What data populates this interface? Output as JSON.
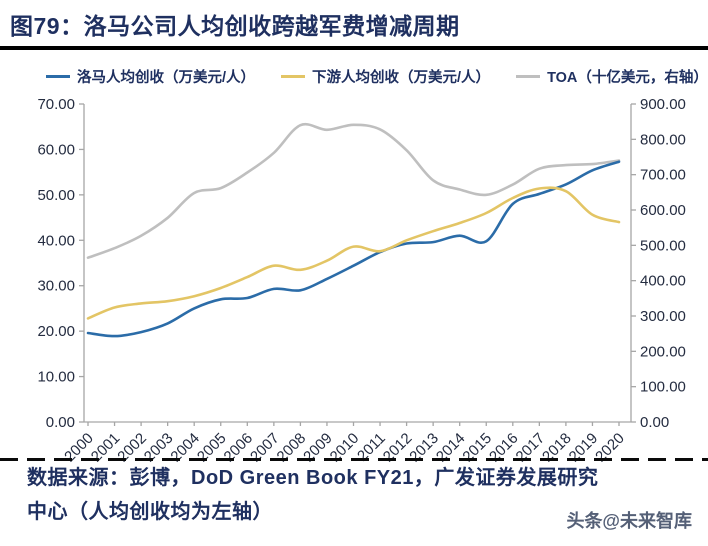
{
  "header": {
    "title": "图79：洛马公司人均创收跨越军费增减周期"
  },
  "legend": {
    "items": [
      {
        "label": "洛马人均创收（万美元/人）",
        "color": "#2B6CA8"
      },
      {
        "label": "下游人均创收（万美元/人）",
        "color": "#E3C565"
      },
      {
        "label": "TOA（十亿美元，右轴）",
        "color": "#BFBFBF"
      }
    ]
  },
  "chart_data": {
    "type": "line",
    "title": "洛马公司人均创收跨越军费增减周期",
    "categories": [
      "2000",
      "2001",
      "2002",
      "2003",
      "2004",
      "2005",
      "2006",
      "2007",
      "2008",
      "2009",
      "2010",
      "2011",
      "2012",
      "2013",
      "2014",
      "2015",
      "2016",
      "2017",
      "2018",
      "2019",
      "2020"
    ],
    "series": [
      {
        "name": "洛马人均创收（万美元/人）",
        "axis": "left",
        "color": "#2B6CA8",
        "values": [
          19.6,
          18.9,
          19.8,
          21.7,
          25.0,
          27.0,
          27.3,
          29.3,
          29.0,
          31.5,
          34.4,
          37.4,
          39.3,
          39.6,
          41.0,
          39.8,
          48.0,
          50.2,
          52.3,
          55.4,
          57.3
        ]
      },
      {
        "name": "下游人均创收（万美元/人）",
        "axis": "left",
        "color": "#E3C565",
        "values": [
          22.8,
          25.2,
          26.1,
          26.6,
          27.7,
          29.5,
          31.9,
          34.4,
          33.5,
          35.5,
          38.6,
          37.6,
          40.0,
          42.0,
          43.8,
          46.0,
          49.3,
          51.4,
          50.8,
          45.6,
          44.0
        ]
      },
      {
        "name": "TOA（十亿美元，右轴）",
        "axis": "right",
        "color": "#BFBFBF",
        "values": [
          465,
          492,
          527,
          578,
          648,
          662,
          706,
          762,
          840,
          827,
          841,
          828,
          769,
          684,
          658,
          643,
          672,
          717,
          727,
          730,
          740
        ]
      }
    ],
    "left_axis": {
      "min": 0,
      "max": 70,
      "tick_labels": [
        "0.00",
        "10.00",
        "20.00",
        "30.00",
        "40.00",
        "50.00",
        "60.00",
        "70.00"
      ]
    },
    "right_axis": {
      "min": 0,
      "max": 900,
      "tick_labels": [
        "0.00",
        "100.00",
        "200.00",
        "300.00",
        "400.00",
        "500.00",
        "600.00",
        "700.00",
        "800.00",
        "900.00"
      ]
    },
    "grid": false,
    "legend_position": "top"
  },
  "footer": {
    "source_line1": "数据来源：彭博，DoD Green Book FY21，广发证券发展研究",
    "source_line2": "中心（人均创收均为左轴）",
    "watermark": "头条@未来智库"
  }
}
